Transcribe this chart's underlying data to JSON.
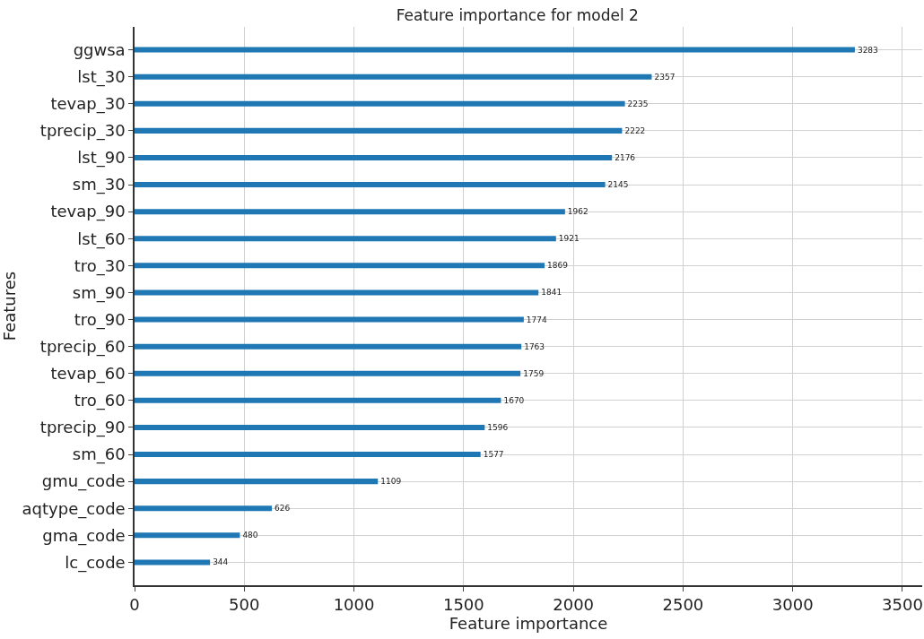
{
  "chart_data": {
    "type": "bar",
    "orientation": "horizontal",
    "title": "Feature importance for model 2",
    "xlabel": "Feature importance",
    "ylabel": "Features",
    "categories": [
      "ggwsa",
      "lst_30",
      "tevap_30",
      "tprecip_30",
      "lst_90",
      "sm_30",
      "tevap_90",
      "lst_60",
      "tro_30",
      "sm_90",
      "tro_90",
      "tprecip_60",
      "tevap_60",
      "tro_60",
      "tprecip_90",
      "sm_60",
      "gmu_code",
      "aqtype_code",
      "gma_code",
      "lc_code"
    ],
    "values": [
      3283,
      2357,
      2235,
      2222,
      2176,
      2145,
      1962,
      1921,
      1869,
      1841,
      1774,
      1763,
      1759,
      1670,
      1596,
      1577,
      1109,
      626,
      480,
      344
    ],
    "color": "#1f77b4",
    "data_labels": true,
    "grid": true,
    "xlim": [
      0,
      3590
    ],
    "xticks": [
      0,
      500,
      1000,
      1500,
      2000,
      2500,
      3000,
      3500
    ]
  }
}
